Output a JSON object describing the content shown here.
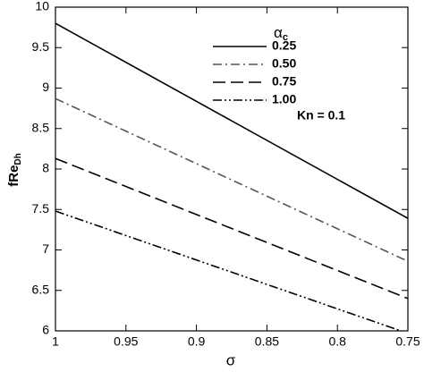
{
  "chart_data": {
    "type": "line",
    "x_label": "σ",
    "y_label": {
      "main": "fRe",
      "subscript": "Dh"
    },
    "legend_title": {
      "symbol": "α",
      "subscript": "c"
    },
    "annotation": "Kn = 0.1",
    "x": [
      1,
      0.75
    ],
    "series": [
      {
        "name": "0.25",
        "color": "#000000",
        "dash": "solid",
        "values": [
          9.8,
          7.39
        ]
      },
      {
        "name": "0.50",
        "color": "#555555",
        "dash": "dashdot",
        "values": [
          8.87,
          6.86
        ]
      },
      {
        "name": "0.75",
        "color": "#000000",
        "dash": "dash",
        "values": [
          8.13,
          6.4
        ]
      },
      {
        "name": "1.00",
        "color": "#000000",
        "dash": "dashdotdot",
        "values": [
          7.48,
          5.97
        ]
      }
    ],
    "xlim": [
      1,
      0.75
    ],
    "xticks": [
      1,
      0.95,
      0.9,
      0.85,
      0.8,
      0.75
    ],
    "ylim": [
      6,
      10
    ],
    "yticks": [
      6,
      6.5,
      7,
      7.5,
      8,
      8.5,
      9,
      9.5,
      10
    ]
  }
}
